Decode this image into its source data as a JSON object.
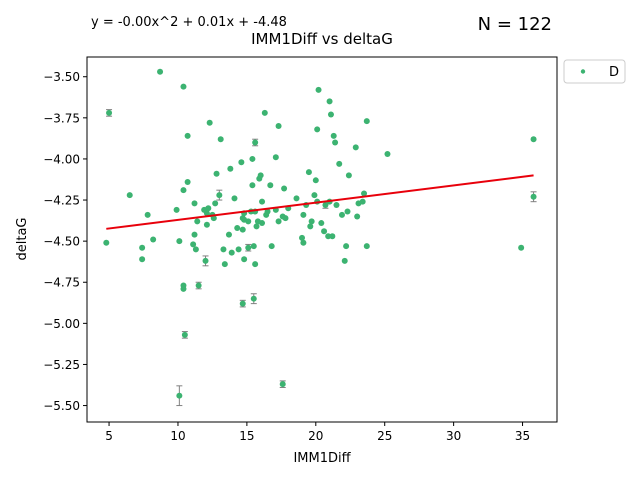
{
  "chart_data": {
    "type": "scatter",
    "title": "IMM1Diff vs deltaG",
    "xlabel": "IMM1Diff",
    "ylabel": "deltaG",
    "fit_equation": "y = -0.00x^2 + 0.01x + -4.48",
    "n_label": "N = 122",
    "legend": {
      "entries": [
        "D"
      ],
      "position": "upper-right-outside"
    },
    "xlim": [
      3.4,
      37.5
    ],
    "ylim": [
      -5.6,
      -3.38
    ],
    "xticks": [
      5,
      10,
      15,
      20,
      25,
      30,
      35
    ],
    "yticks": [
      -5.5,
      -5.25,
      -5.0,
      -4.75,
      -4.5,
      -4.25,
      -4.0,
      -3.75,
      -3.5
    ],
    "xtick_labels": [
      "5",
      "10",
      "15",
      "20",
      "25",
      "30",
      "35"
    ],
    "ytick_labels": [
      "−5.50",
      "−5.25",
      "−5.00",
      "−4.75",
      "−4.50",
      "−4.25",
      "−4.00",
      "−3.75",
      "−3.50"
    ],
    "grid": false,
    "colors": {
      "points": "#3cb371",
      "fit_line": "#e8000b",
      "error_bar": "#808080"
    },
    "trend_line": {
      "x": [
        4.8,
        35.8
      ],
      "y": [
        -4.425,
        -4.1
      ]
    },
    "series": [
      {
        "name": "D",
        "points": [
          {
            "x": 4.8,
            "y": -4.51
          },
          {
            "x": 5.0,
            "y": -3.72
          },
          {
            "x": 6.5,
            "y": -4.22
          },
          {
            "x": 7.4,
            "y": -4.54
          },
          {
            "x": 7.4,
            "y": -4.61
          },
          {
            "x": 7.8,
            "y": -4.34
          },
          {
            "x": 8.2,
            "y": -4.49
          },
          {
            "x": 8.7,
            "y": -3.47
          },
          {
            "x": 9.9,
            "y": -4.31
          },
          {
            "x": 10.1,
            "y": -4.5
          },
          {
            "x": 10.1,
            "y": -5.44
          },
          {
            "x": 10.4,
            "y": -4.77
          },
          {
            "x": 10.4,
            "y": -4.79
          },
          {
            "x": 10.4,
            "y": -3.56
          },
          {
            "x": 10.4,
            "y": -4.19
          },
          {
            "x": 10.5,
            "y": -5.07
          },
          {
            "x": 10.7,
            "y": -3.86
          },
          {
            "x": 10.7,
            "y": -4.14
          },
          {
            "x": 11.1,
            "y": -4.52
          },
          {
            "x": 11.2,
            "y": -4.46
          },
          {
            "x": 11.2,
            "y": -4.27
          },
          {
            "x": 11.3,
            "y": -4.55
          },
          {
            "x": 11.4,
            "y": -4.38
          },
          {
            "x": 11.5,
            "y": -4.77
          },
          {
            "x": 11.9,
            "y": -4.31
          },
          {
            "x": 12.0,
            "y": -4.62
          },
          {
            "x": 12.1,
            "y": -4.33
          },
          {
            "x": 12.1,
            "y": -4.4
          },
          {
            "x": 12.2,
            "y": -4.3
          },
          {
            "x": 12.3,
            "y": -3.78
          },
          {
            "x": 12.5,
            "y": -4.34
          },
          {
            "x": 12.6,
            "y": -4.36
          },
          {
            "x": 12.7,
            "y": -4.27
          },
          {
            "x": 12.8,
            "y": -4.09
          },
          {
            "x": 13.0,
            "y": -4.22
          },
          {
            "x": 13.1,
            "y": -3.88
          },
          {
            "x": 13.3,
            "y": -4.55
          },
          {
            "x": 13.4,
            "y": -4.64
          },
          {
            "x": 13.7,
            "y": -4.46
          },
          {
            "x": 13.8,
            "y": -4.06
          },
          {
            "x": 13.9,
            "y": -4.57
          },
          {
            "x": 14.1,
            "y": -4.24
          },
          {
            "x": 14.3,
            "y": -4.42
          },
          {
            "x": 14.4,
            "y": -4.55
          },
          {
            "x": 14.6,
            "y": -4.02
          },
          {
            "x": 14.7,
            "y": -4.88
          },
          {
            "x": 14.7,
            "y": -4.36
          },
          {
            "x": 14.7,
            "y": -4.43
          },
          {
            "x": 14.8,
            "y": -4.33
          },
          {
            "x": 14.8,
            "y": -4.37
          },
          {
            "x": 14.8,
            "y": -4.61
          },
          {
            "x": 15.1,
            "y": -4.38
          },
          {
            "x": 15.1,
            "y": -4.54
          },
          {
            "x": 15.3,
            "y": -4.32
          },
          {
            "x": 15.4,
            "y": -4.16
          },
          {
            "x": 15.4,
            "y": -4.0
          },
          {
            "x": 15.5,
            "y": -4.85
          },
          {
            "x": 15.5,
            "y": -4.53
          },
          {
            "x": 15.6,
            "y": -3.9
          },
          {
            "x": 15.6,
            "y": -4.32
          },
          {
            "x": 15.6,
            "y": -4.64
          },
          {
            "x": 15.7,
            "y": -4.41
          },
          {
            "x": 15.8,
            "y": -4.38
          },
          {
            "x": 15.9,
            "y": -4.12
          },
          {
            "x": 16.0,
            "y": -4.1
          },
          {
            "x": 16.1,
            "y": -4.26
          },
          {
            "x": 16.1,
            "y": -4.39
          },
          {
            "x": 16.3,
            "y": -3.72
          },
          {
            "x": 16.4,
            "y": -4.34
          },
          {
            "x": 16.5,
            "y": -4.32
          },
          {
            "x": 16.7,
            "y": -4.16
          },
          {
            "x": 16.8,
            "y": -4.53
          },
          {
            "x": 17.1,
            "y": -3.99
          },
          {
            "x": 17.1,
            "y": -4.31
          },
          {
            "x": 17.3,
            "y": -4.38
          },
          {
            "x": 17.3,
            "y": -3.8
          },
          {
            "x": 17.6,
            "y": -5.37
          },
          {
            "x": 17.6,
            "y": -4.35
          },
          {
            "x": 17.7,
            "y": -4.18
          },
          {
            "x": 17.8,
            "y": -4.36
          },
          {
            "x": 18.0,
            "y": -4.3
          },
          {
            "x": 18.6,
            "y": -4.24
          },
          {
            "x": 19.0,
            "y": -4.48
          },
          {
            "x": 19.1,
            "y": -4.34
          },
          {
            "x": 19.1,
            "y": -4.51
          },
          {
            "x": 19.3,
            "y": -4.28
          },
          {
            "x": 19.5,
            "y": -4.08
          },
          {
            "x": 19.6,
            "y": -4.41
          },
          {
            "x": 19.7,
            "y": -4.38
          },
          {
            "x": 19.9,
            "y": -4.22
          },
          {
            "x": 20.0,
            "y": -4.13
          },
          {
            "x": 20.1,
            "y": -3.82
          },
          {
            "x": 20.1,
            "y": -4.26
          },
          {
            "x": 20.2,
            "y": -3.58
          },
          {
            "x": 20.4,
            "y": -4.39
          },
          {
            "x": 20.6,
            "y": -4.44
          },
          {
            "x": 20.7,
            "y": -4.28
          },
          {
            "x": 20.9,
            "y": -4.47
          },
          {
            "x": 21.0,
            "y": -4.26
          },
          {
            "x": 21.0,
            "y": -3.65
          },
          {
            "x": 21.1,
            "y": -3.73
          },
          {
            "x": 21.2,
            "y": -4.47
          },
          {
            "x": 21.3,
            "y": -3.86
          },
          {
            "x": 21.4,
            "y": -3.9
          },
          {
            "x": 21.5,
            "y": -4.28
          },
          {
            "x": 21.7,
            "y": -4.03
          },
          {
            "x": 21.9,
            "y": -4.34
          },
          {
            "x": 22.1,
            "y": -4.62
          },
          {
            "x": 22.2,
            "y": -4.53
          },
          {
            "x": 22.3,
            "y": -4.32
          },
          {
            "x": 22.4,
            "y": -4.1
          },
          {
            "x": 22.9,
            "y": -3.93
          },
          {
            "x": 23.0,
            "y": -4.35
          },
          {
            "x": 23.1,
            "y": -4.27
          },
          {
            "x": 23.4,
            "y": -4.26
          },
          {
            "x": 23.5,
            "y": -4.21
          },
          {
            "x": 23.7,
            "y": -3.77
          },
          {
            "x": 23.7,
            "y": -4.53
          },
          {
            "x": 25.2,
            "y": -3.97
          },
          {
            "x": 34.9,
            "y": -4.54
          },
          {
            "x": 35.8,
            "y": -3.88
          },
          {
            "x": 35.8,
            "y": -4.23
          }
        ],
        "error_bars": [
          {
            "x": 5.0,
            "y": -3.72,
            "err": 0.02
          },
          {
            "x": 10.1,
            "y": -5.44,
            "err": 0.06
          },
          {
            "x": 10.5,
            "y": -5.07,
            "err": 0.02
          },
          {
            "x": 11.5,
            "y": -4.77,
            "err": 0.02
          },
          {
            "x": 12.0,
            "y": -4.62,
            "err": 0.03
          },
          {
            "x": 13.0,
            "y": -4.22,
            "err": 0.03
          },
          {
            "x": 14.7,
            "y": -4.88,
            "err": 0.02
          },
          {
            "x": 15.1,
            "y": -4.54,
            "err": 0.02
          },
          {
            "x": 15.5,
            "y": -4.85,
            "err": 0.03
          },
          {
            "x": 15.6,
            "y": -3.9,
            "err": 0.02
          },
          {
            "x": 17.6,
            "y": -5.37,
            "err": 0.02
          },
          {
            "x": 20.7,
            "y": -4.28,
            "err": 0.02
          },
          {
            "x": 35.8,
            "y": -4.23,
            "err": 0.03
          }
        ]
      }
    ]
  }
}
